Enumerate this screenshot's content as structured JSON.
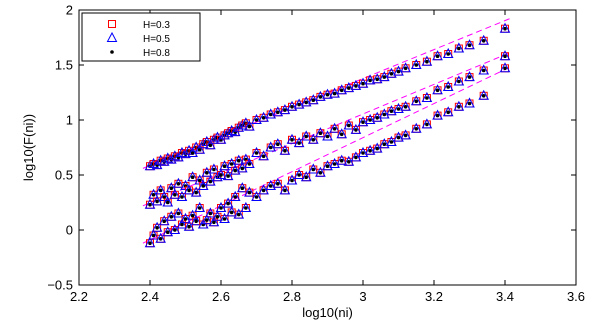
{
  "colors": {
    "h03_marker": "#ff0000",
    "h05_marker": "#0000ff",
    "h08_marker": "#000000",
    "fit_line": "#ff00ff"
  },
  "chart_data": {
    "type": "scatter",
    "title": "",
    "xlabel": "log10(ni)",
    "ylabel": "log10(F(ni))",
    "xlim": [
      2.2,
      3.6
    ],
    "ylim": [
      -0.5,
      2
    ],
    "xticks": [
      2.2,
      2.4,
      2.6,
      2.8,
      3,
      3.2,
      3.4,
      3.6
    ],
    "xtick_labels": [
      "2.2",
      "2.4",
      "2.6",
      "2.8",
      "3",
      "3.2",
      "3.4",
      "3.6"
    ],
    "yticks": [
      -0.5,
      0,
      0.5,
      1,
      1.5,
      2
    ],
    "ytick_labels": [
      "−0.5",
      "0",
      "0.5",
      "1",
      "1.5",
      "2"
    ],
    "grid": false,
    "legend_position": "top-left",
    "legend": [
      {
        "label": "H=0.3",
        "marker": "square",
        "color": "#ff0000"
      },
      {
        "label": "H=0.5",
        "marker": "triangle",
        "color": "#0000ff"
      },
      {
        "label": "H=0.8",
        "marker": "dot",
        "color": "#000000"
      }
    ],
    "fit_lines": [
      {
        "x": [
          2.38,
          3.42
        ],
        "y": [
          0.56,
          1.93
        ]
      },
      {
        "x": [
          2.38,
          3.42
        ],
        "y": [
          0.22,
          1.62
        ]
      },
      {
        "x": [
          2.38,
          3.42
        ],
        "y": [
          -0.12,
          1.49
        ]
      }
    ],
    "series": [
      {
        "x": [
          2.4,
          2.41,
          2.42,
          2.43,
          2.44,
          2.45,
          2.46,
          2.47,
          2.48,
          2.49,
          2.5,
          2.51,
          2.52,
          2.53,
          2.54,
          2.55,
          2.56,
          2.57,
          2.58,
          2.59,
          2.6,
          2.61,
          2.62,
          2.63,
          2.64,
          2.65,
          2.66,
          2.67,
          2.68,
          2.7,
          2.72,
          2.74,
          2.76,
          2.78,
          2.8,
          2.82,
          2.84,
          2.86,
          2.88,
          2.9,
          2.92,
          2.94,
          2.96,
          2.98,
          3.0,
          3.02,
          3.04,
          3.06,
          3.08,
          3.1,
          3.12,
          3.15,
          3.18,
          3.21,
          3.24,
          3.27,
          3.3,
          3.34,
          3.4
        ],
        "y": [
          0.58,
          0.6,
          0.59,
          0.63,
          0.62,
          0.65,
          0.64,
          0.67,
          0.66,
          0.7,
          0.69,
          0.72,
          0.7,
          0.75,
          0.73,
          0.78,
          0.8,
          0.77,
          0.82,
          0.84,
          0.82,
          0.86,
          0.88,
          0.9,
          0.89,
          0.93,
          0.95,
          0.97,
          0.94,
          1.0,
          1.02,
          1.05,
          1.07,
          1.09,
          1.12,
          1.14,
          1.16,
          1.18,
          1.21,
          1.23,
          1.24,
          1.27,
          1.29,
          1.31,
          1.33,
          1.36,
          1.37,
          1.39,
          1.42,
          1.44,
          1.47,
          1.5,
          1.53,
          1.58,
          1.6,
          1.65,
          1.68,
          1.72,
          1.83
        ]
      },
      {
        "x": [
          2.4,
          2.41,
          2.42,
          2.43,
          2.44,
          2.45,
          2.46,
          2.47,
          2.48,
          2.49,
          2.5,
          2.51,
          2.52,
          2.53,
          2.54,
          2.55,
          2.56,
          2.57,
          2.58,
          2.59,
          2.6,
          2.61,
          2.62,
          2.63,
          2.64,
          2.65,
          2.66,
          2.67,
          2.68,
          2.7,
          2.72,
          2.74,
          2.76,
          2.78,
          2.8,
          2.82,
          2.84,
          2.86,
          2.88,
          2.9,
          2.92,
          2.94,
          2.96,
          2.98,
          3.0,
          3.02,
          3.04,
          3.06,
          3.08,
          3.1,
          3.12,
          3.15,
          3.18,
          3.21,
          3.24,
          3.27,
          3.3,
          3.34,
          3.4
        ],
        "y": [
          0.23,
          0.32,
          0.26,
          0.36,
          0.3,
          0.25,
          0.38,
          0.32,
          0.42,
          0.3,
          0.4,
          0.36,
          0.48,
          0.34,
          0.45,
          0.4,
          0.52,
          0.44,
          0.55,
          0.48,
          0.5,
          0.58,
          0.49,
          0.6,
          0.54,
          0.63,
          0.56,
          0.64,
          0.6,
          0.7,
          0.67,
          0.75,
          0.78,
          0.72,
          0.82,
          0.79,
          0.85,
          0.82,
          0.88,
          0.85,
          0.92,
          0.87,
          0.95,
          0.91,
          0.98,
          1.0,
          1.02,
          1.05,
          1.08,
          1.1,
          1.12,
          1.17,
          1.2,
          1.27,
          1.3,
          1.35,
          1.39,
          1.45,
          1.58
        ]
      },
      {
        "x": [
          2.4,
          2.41,
          2.42,
          2.43,
          2.44,
          2.45,
          2.46,
          2.47,
          2.48,
          2.49,
          2.5,
          2.51,
          2.52,
          2.53,
          2.54,
          2.55,
          2.56,
          2.57,
          2.58,
          2.59,
          2.6,
          2.61,
          2.62,
          2.63,
          2.64,
          2.65,
          2.66,
          2.67,
          2.68,
          2.7,
          2.72,
          2.74,
          2.76,
          2.78,
          2.8,
          2.82,
          2.84,
          2.86,
          2.88,
          2.9,
          2.92,
          2.94,
          2.96,
          2.98,
          3.0,
          3.02,
          3.04,
          3.06,
          3.08,
          3.1,
          3.12,
          3.15,
          3.18,
          3.21,
          3.24,
          3.27,
          3.3,
          3.34,
          3.4
        ],
        "y": [
          -0.12,
          -0.05,
          0.02,
          -0.08,
          0.08,
          -0.02,
          0.12,
          0.0,
          0.15,
          0.05,
          0.1,
          0.03,
          0.13,
          0.08,
          0.2,
          0.05,
          0.09,
          0.15,
          0.07,
          0.12,
          0.2,
          0.1,
          0.24,
          0.16,
          0.3,
          0.14,
          0.38,
          0.2,
          0.34,
          0.3,
          0.36,
          0.4,
          0.42,
          0.36,
          0.45,
          0.5,
          0.48,
          0.55,
          0.52,
          0.58,
          0.6,
          0.63,
          0.62,
          0.66,
          0.7,
          0.72,
          0.74,
          0.78,
          0.8,
          0.84,
          0.86,
          0.92,
          0.96,
          1.04,
          1.07,
          1.12,
          1.15,
          1.22,
          1.47
        ]
      }
    ]
  }
}
